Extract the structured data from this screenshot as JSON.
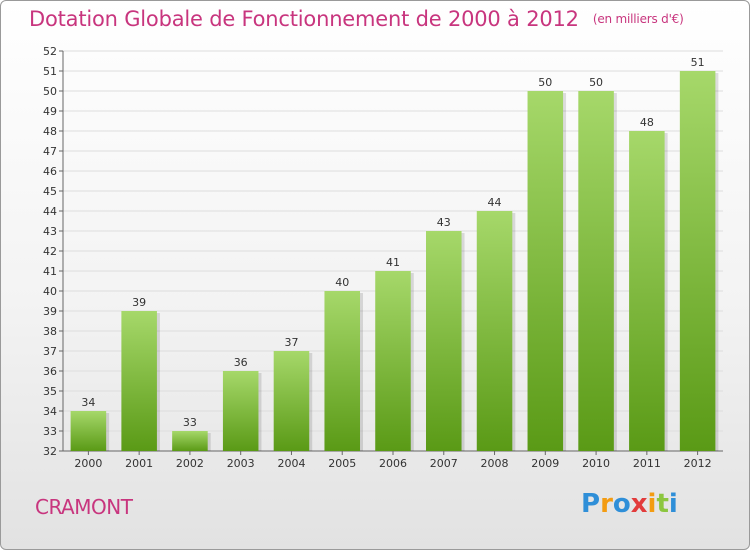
{
  "header": {
    "title": "Dotation Globale de Fonctionnement de 2000 à 2012",
    "subtitle": "(en milliers d'€)"
  },
  "commune": "CRAMONT",
  "logo": {
    "text": "Proxiti",
    "letters": [
      {
        "ch": "P",
        "color": "#2f8fd8"
      },
      {
        "ch": "r",
        "color": "#f39c12"
      },
      {
        "ch": "o",
        "color": "#2f8fd8"
      },
      {
        "ch": "x",
        "color": "#e23b3b"
      },
      {
        "ch": "i",
        "color": "#f39c12"
      },
      {
        "ch": "t",
        "color": "#8cc63f"
      },
      {
        "ch": "i",
        "color": "#2f8fd8"
      }
    ]
  },
  "colors": {
    "bar_top": "#a6d86a",
    "bar_bottom": "#5a9a16",
    "accent": "#c8357e",
    "grid": "#dddddd"
  },
  "chart_data": {
    "type": "bar",
    "categories": [
      "2000",
      "2001",
      "2002",
      "2003",
      "2004",
      "2005",
      "2006",
      "2007",
      "2008",
      "2009",
      "2010",
      "2011",
      "2012"
    ],
    "values": [
      34,
      39,
      33,
      36,
      37,
      40,
      41,
      43,
      44,
      50,
      50,
      48,
      51
    ],
    "title": "Dotation Globale de Fonctionnement de 2000 à 2012",
    "ylim": [
      32,
      52
    ],
    "yticks": [
      32,
      33,
      34,
      35,
      36,
      37,
      38,
      39,
      40,
      41,
      42,
      43,
      44,
      45,
      46,
      47,
      48,
      49,
      50,
      51,
      52
    ],
    "grid": true
  }
}
